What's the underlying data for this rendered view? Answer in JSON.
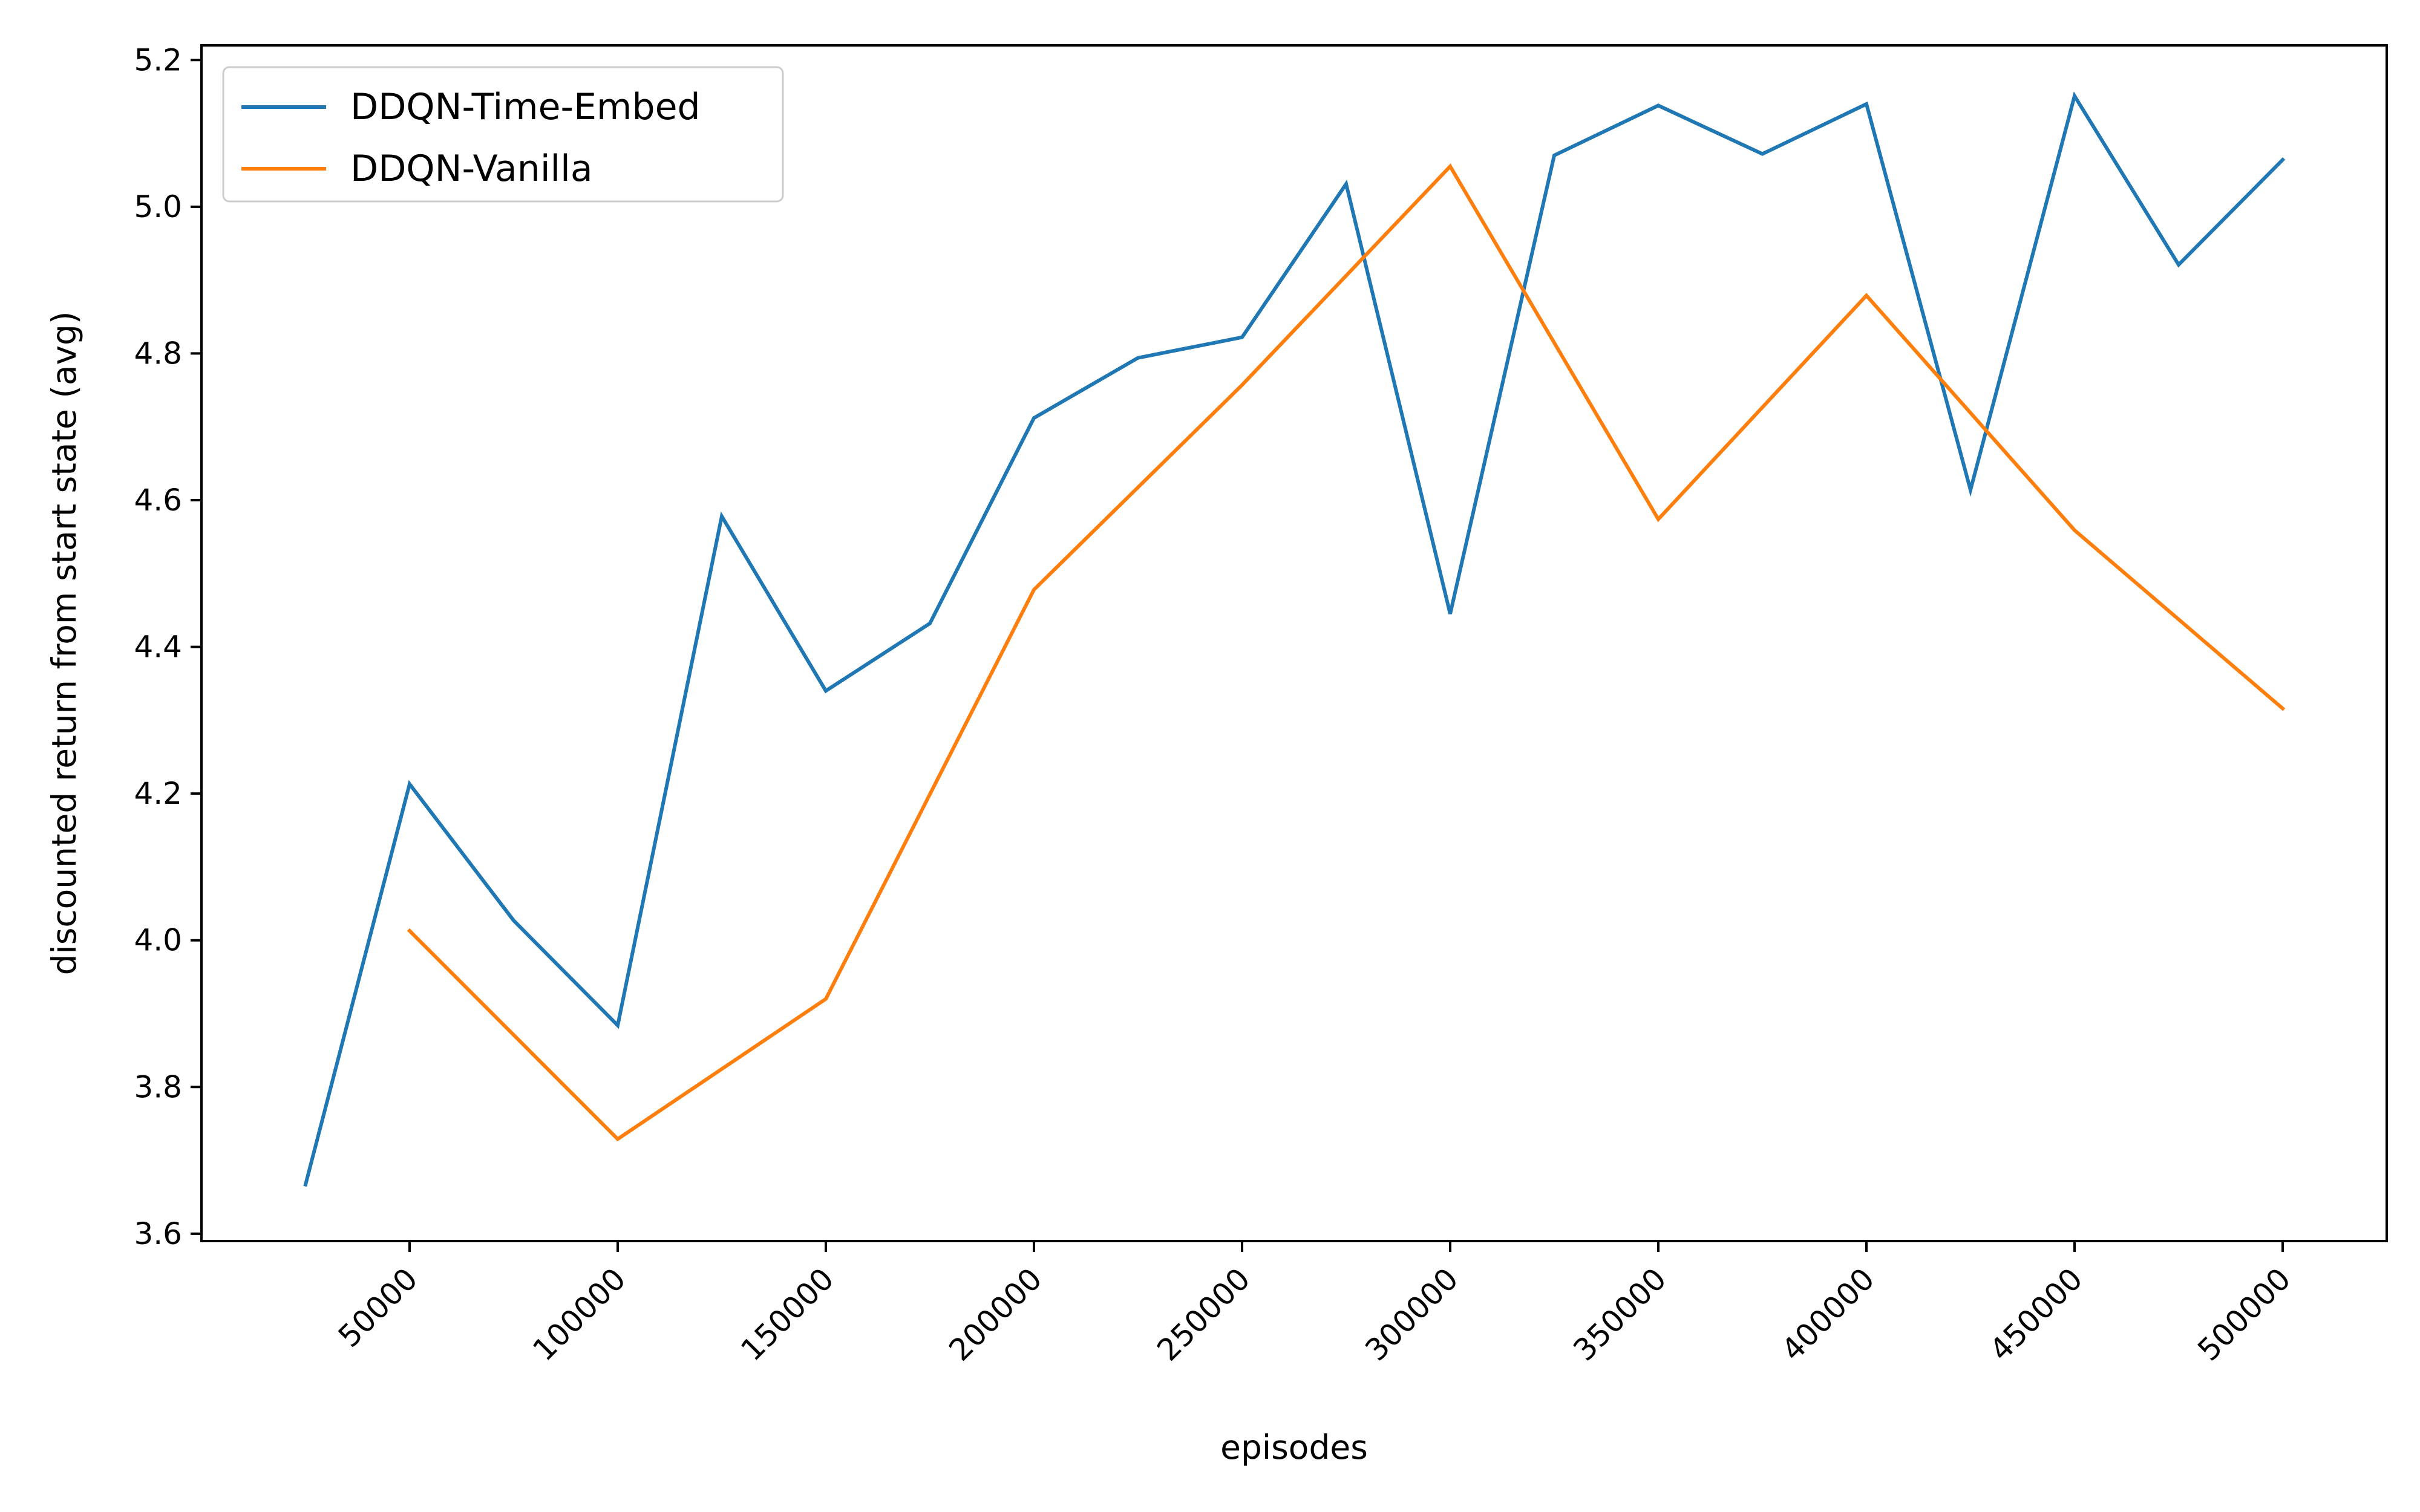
{
  "chart_data": {
    "type": "line",
    "title": "",
    "xlabel": "episodes",
    "ylabel": "discounted return from start state (avg)",
    "xlim": [
      0,
      525000
    ],
    "ylim": [
      3.59,
      5.22
    ],
    "xticks": [
      50000,
      100000,
      150000,
      200000,
      250000,
      300000,
      350000,
      400000,
      450000,
      500000
    ],
    "yticks": [
      3.6,
      3.8,
      4.0,
      4.2,
      4.4,
      4.6,
      4.8,
      5.0,
      5.2
    ],
    "grid": false,
    "legend_position": "top-left",
    "series": [
      {
        "name": "DDQN-Time-Embed",
        "color": "#1f77b4",
        "x": [
          25000,
          50000,
          75000,
          100000,
          125000,
          150000,
          175000,
          200000,
          225000,
          250000,
          275000,
          300000,
          325000,
          350000,
          375000,
          400000,
          425000,
          450000,
          475000,
          500000
        ],
        "y": [
          3.667,
          4.213,
          4.027,
          3.884,
          4.578,
          4.34,
          4.432,
          4.712,
          4.794,
          4.822,
          5.031,
          4.445,
          5.07,
          5.138,
          5.072,
          5.14,
          4.614,
          5.151,
          4.921,
          5.064
        ]
      },
      {
        "name": "DDQN-Vanilla",
        "color": "#ff7f0e",
        "x": [
          50000,
          100000,
          150000,
          200000,
          250000,
          300000,
          350000,
          400000,
          450000,
          500000
        ],
        "y": [
          4.013,
          3.729,
          3.92,
          4.478,
          4.757,
          5.055,
          4.574,
          4.879,
          4.559,
          4.316
        ]
      }
    ]
  }
}
